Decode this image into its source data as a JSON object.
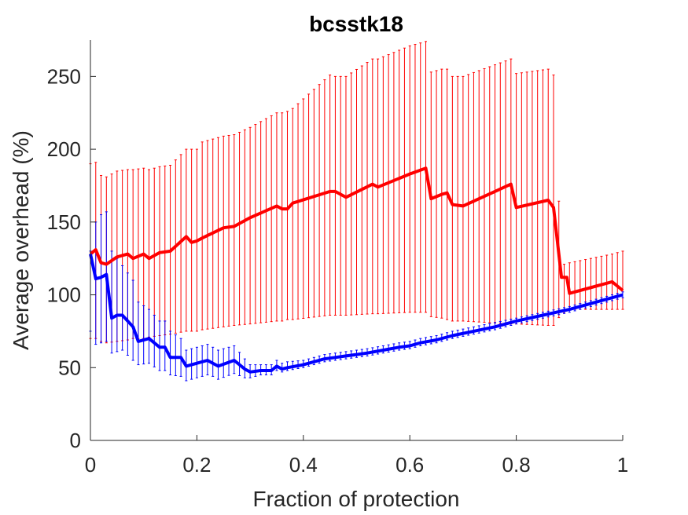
{
  "chart_data": {
    "type": "line",
    "title": "bcsstk18",
    "xlabel": "Fraction of protection",
    "ylabel": "Average overhead (%)",
    "xlim": [
      0,
      1
    ],
    "ylim": [
      0,
      275
    ],
    "xticks": [
      0,
      0.2,
      0.4,
      0.6,
      0.8,
      1
    ],
    "xtick_labels": [
      "0",
      "0.2",
      "0.4",
      "0.6",
      "0.8",
      "1"
    ],
    "yticks": [
      0,
      50,
      100,
      150,
      200,
      250
    ],
    "ytick_labels": [
      "0",
      "50",
      "100",
      "150",
      "200",
      "250"
    ],
    "grid": false,
    "error_bars": true,
    "series": [
      {
        "color": "#ff0000",
        "x": [
          0,
          0.01,
          0.02,
          0.03,
          0.05,
          0.07,
          0.08,
          0.1,
          0.11,
          0.13,
          0.15,
          0.18,
          0.19,
          0.2,
          0.21,
          0.25,
          0.27,
          0.3,
          0.35,
          0.36,
          0.37,
          0.38,
          0.45,
          0.46,
          0.48,
          0.53,
          0.54,
          0.6,
          0.63,
          0.64,
          0.66,
          0.67,
          0.68,
          0.7,
          0.79,
          0.8,
          0.86,
          0.87,
          0.885,
          0.895,
          0.9,
          0.98,
          1
        ],
        "y": [
          128,
          131,
          122,
          121,
          126,
          128,
          125,
          128,
          125,
          129,
          130,
          140,
          136,
          137,
          139,
          146,
          147,
          153,
          161,
          159,
          159,
          163,
          171,
          171,
          167,
          176,
          174,
          183,
          187,
          166,
          169,
          170,
          162,
          161,
          176,
          160,
          165,
          160,
          112,
          112,
          101,
          109,
          103
        ],
        "err_low": [
          70,
          70,
          68,
          67,
          68,
          69,
          70,
          70,
          71,
          72,
          73,
          75,
          75,
          75,
          76,
          78,
          79,
          80,
          82,
          82,
          83,
          83,
          86,
          86,
          86,
          87,
          87,
          88,
          88,
          85,
          84,
          83,
          82,
          82,
          80,
          80,
          79,
          79,
          87,
          88,
          90,
          90,
          90
        ],
        "err_high": [
          190,
          191,
          182,
          181,
          185,
          186,
          186,
          187,
          186,
          188,
          189,
          200,
          200,
          200,
          205,
          209,
          210,
          215,
          225,
          225,
          226,
          228,
          251,
          250,
          250,
          262,
          262,
          271,
          274,
          253,
          255,
          255,
          250,
          250,
          262,
          252,
          255,
          251,
          121,
          121,
          122,
          128,
          130
        ]
      },
      {
        "color": "#0000ff",
        "x": [
          0,
          0.01,
          0.02,
          0.03,
          0.04,
          0.05,
          0.06,
          0.08,
          0.09,
          0.11,
          0.13,
          0.14,
          0.15,
          0.17,
          0.18,
          0.2,
          0.22,
          0.23,
          0.24,
          0.27,
          0.29,
          0.3,
          0.32,
          0.34,
          0.35,
          0.36,
          0.37,
          0.4,
          0.44,
          0.46,
          0.48,
          0.5,
          0.52,
          0.55,
          0.58,
          0.6,
          0.62,
          0.65,
          0.68,
          0.72,
          0.76,
          0.8,
          0.85,
          0.9,
          0.95,
          1
        ],
        "y": [
          128,
          111,
          112,
          114,
          84,
          86,
          86,
          78,
          68,
          70,
          64,
          64,
          57,
          57,
          51,
          53,
          55,
          53,
          51,
          55,
          49,
          47,
          48,
          48,
          51,
          49,
          50,
          52,
          56,
          57,
          58,
          59,
          60,
          62,
          64,
          65,
          67,
          69,
          72,
          75,
          78,
          82,
          86,
          90,
          95,
          100
        ],
        "err_low": [
          75,
          66,
          67,
          68,
          60,
          61,
          62,
          55,
          52,
          53,
          48,
          48,
          45,
          44,
          41,
          43,
          45,
          44,
          42,
          46,
          43,
          43,
          45,
          45,
          48,
          47,
          48,
          50,
          54,
          55,
          56,
          57,
          58,
          60,
          62,
          63,
          65,
          67,
          70,
          73,
          76,
          80,
          84,
          88,
          93,
          98
        ],
        "err_high": [
          130,
          150,
          155,
          157,
          130,
          125,
          120,
          110,
          95,
          90,
          82,
          82,
          75,
          70,
          62,
          64,
          66,
          64,
          62,
          65,
          56,
          52,
          52,
          52,
          55,
          53,
          54,
          55,
          59,
          60,
          61,
          62,
          63,
          65,
          67,
          68,
          70,
          72,
          75,
          78,
          81,
          84,
          88,
          92,
          97,
          102
        ]
      }
    ]
  }
}
